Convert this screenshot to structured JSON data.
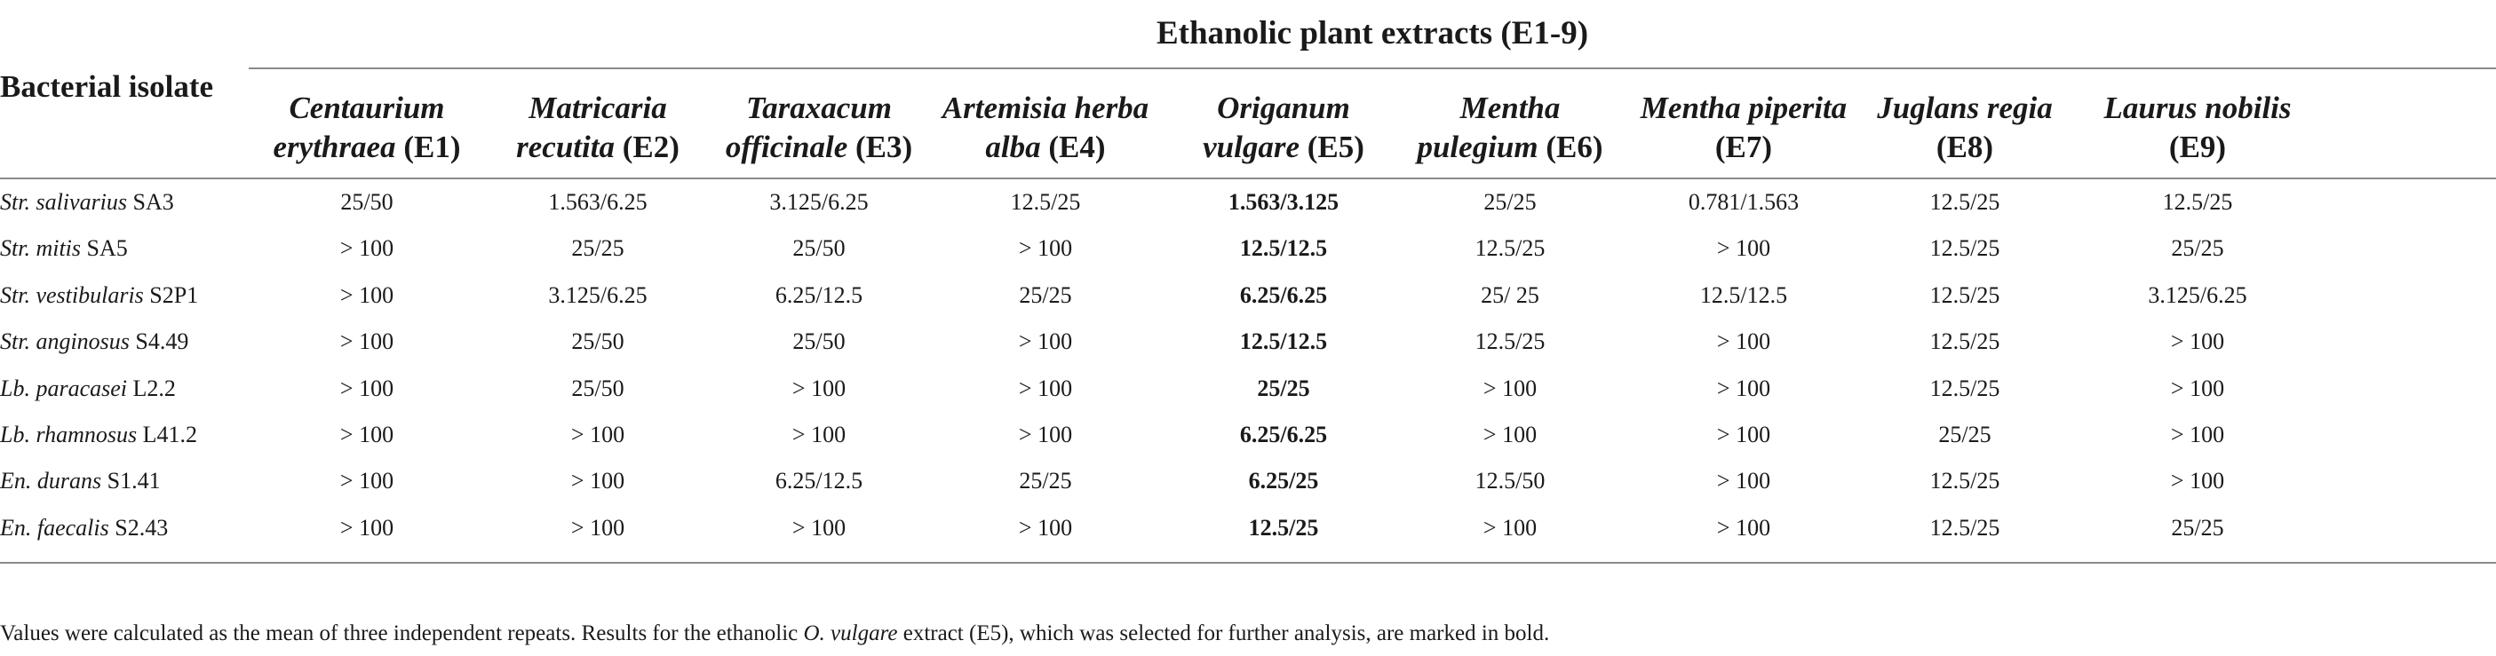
{
  "table": {
    "group_title": "Ethanolic plant extracts (E1-9)",
    "row_header": "Bacterial isolate",
    "columns": [
      {
        "species_line1": "Centaurium",
        "species_line2": "erythraea",
        "code": "(E1)"
      },
      {
        "species_line1": "Matricaria",
        "species_line2": "recutita",
        "code": "(E2)"
      },
      {
        "species_line1": "Taraxacum",
        "species_line2": "officinale",
        "code": "(E3)"
      },
      {
        "species_line1": "Artemisia herba",
        "species_line2": "alba",
        "code": "(E4)"
      },
      {
        "species_line1": "Origanum",
        "species_line2": "vulgare",
        "code": "(E5)"
      },
      {
        "species_line1": "Mentha",
        "species_line2": "pulegium",
        "code": "(E6)"
      },
      {
        "species_line1": "Mentha piperita",
        "species_line2": "",
        "code": "(E7)"
      },
      {
        "species_line1": "Juglans regia",
        "species_line2": "",
        "code": "(E8)"
      },
      {
        "species_line1": "Laurus nobilis",
        "species_line2": "",
        "code": "(E9)"
      }
    ],
    "rows": [
      {
        "species": "Str. salivarius",
        "strain": "SA3",
        "values": [
          "25/50",
          "1.563/6.25",
          "3.125/6.25",
          "12.5/25",
          "1.563/3.125",
          "25/25",
          "0.781/1.563",
          "12.5/25",
          "12.5/25"
        ]
      },
      {
        "species": "Str. mitis",
        "strain": "SA5",
        "values": [
          "> 100",
          "25/25",
          "25/50",
          "> 100",
          "12.5/12.5",
          "12.5/25",
          "> 100",
          "12.5/25",
          "25/25"
        ]
      },
      {
        "species": "Str. vestibularis",
        "strain": "S2P1",
        "values": [
          "> 100",
          "3.125/6.25",
          "6.25/12.5",
          "25/25",
          "6.25/6.25",
          "25/ 25",
          "12.5/12.5",
          "12.5/25",
          "3.125/6.25"
        ]
      },
      {
        "species": "Str. anginosus",
        "strain": "S4.49",
        "values": [
          "> 100",
          "25/50",
          "25/50",
          "> 100",
          "12.5/12.5",
          "12.5/25",
          "> 100",
          "12.5/25",
          "> 100"
        ]
      },
      {
        "species": "Lb. paracasei",
        "strain": "L2.2",
        "values": [
          "> 100",
          "25/50",
          "> 100",
          "> 100",
          "25/25",
          "> 100",
          "> 100",
          "12.5/25",
          "> 100"
        ]
      },
      {
        "species": "Lb. rhamnosus",
        "strain": "L41.2",
        "values": [
          "> 100",
          "> 100",
          "> 100",
          "> 100",
          "6.25/6.25",
          "> 100",
          "> 100",
          "25/25",
          "> 100"
        ]
      },
      {
        "species": "En. durans",
        "strain": "S1.41",
        "values": [
          "> 100",
          "> 100",
          "6.25/12.5",
          "25/25",
          "6.25/25",
          "12.5/50",
          "> 100",
          "12.5/25",
          "> 100"
        ]
      },
      {
        "species": "En. faecalis",
        "strain": "S2.43",
        "values": [
          "> 100",
          "> 100",
          "> 100",
          "> 100",
          "12.5/25",
          "> 100",
          "> 100",
          "12.5/25",
          "25/25"
        ]
      }
    ]
  },
  "footnote": {
    "before": "Values were calculated as the mean of three independent repeats. Results for the ethanolic",
    "italic": "O. vulgare",
    "after": "extract (E5), which was selected for further analysis, are marked in bold."
  }
}
